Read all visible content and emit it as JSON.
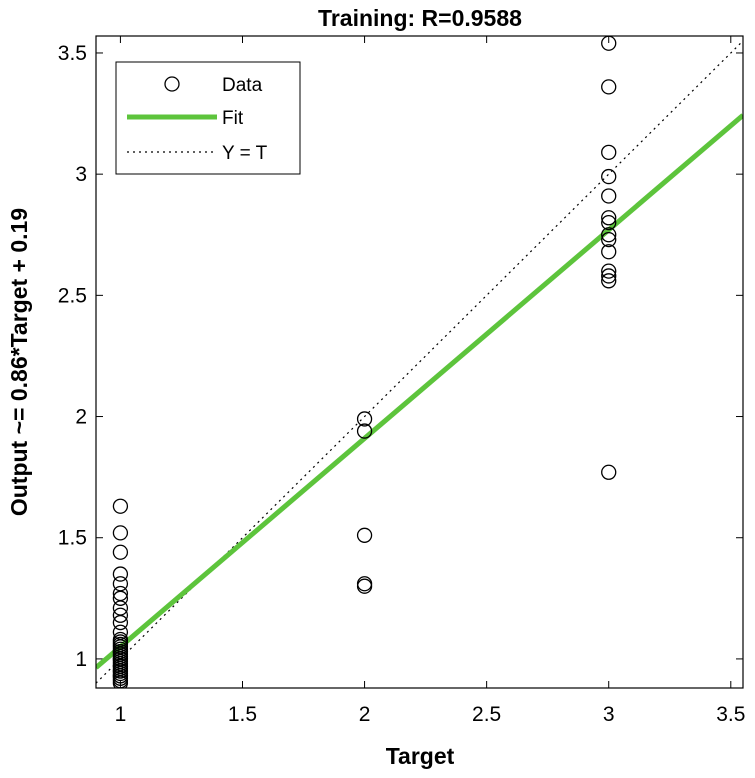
{
  "chart_data": {
    "type": "scatter",
    "title": "Training: R=0.9588",
    "xlabel": "Target",
    "ylabel": "Output ~= 0.86*Target + 0.19",
    "xlim": [
      0.9,
      3.55
    ],
    "ylim": [
      0.88,
      3.57
    ],
    "xticks": [
      1,
      1.5,
      2,
      2.5,
      3,
      3.5
    ],
    "xtick_labels": [
      "1",
      "1.5",
      "2",
      "2.5",
      "3",
      "3.5"
    ],
    "yticks": [
      1,
      1.5,
      2,
      2.5,
      3,
      3.5
    ],
    "ytick_labels": [
      "1",
      "1.5",
      "2",
      "2.5",
      "3",
      "3.5"
    ],
    "grid": false,
    "legend_position": "top-left",
    "series": [
      {
        "name": "Data",
        "kind": "markers",
        "marker": "circle",
        "color": "#000000",
        "x": [
          1,
          1,
          1,
          1,
          1,
          1,
          1,
          1,
          1,
          1,
          1,
          1,
          1,
          1,
          1,
          1,
          1,
          1,
          1,
          1,
          1,
          1,
          1,
          1,
          1,
          1,
          1,
          1,
          1,
          1,
          1,
          1,
          1,
          1,
          1,
          2,
          2,
          2,
          2,
          2,
          3,
          3,
          3,
          3,
          3,
          3,
          3,
          3,
          3,
          3,
          3,
          3,
          3,
          3
        ],
        "y": [
          1.63,
          1.52,
          1.44,
          1.35,
          1.31,
          1.27,
          1.25,
          1.21,
          1.18,
          1.15,
          1.11,
          1.08,
          1.07,
          1.06,
          1.05,
          1.04,
          1.03,
          1.02,
          1.01,
          1.0,
          0.99,
          0.98,
          0.97,
          0.96,
          0.95,
          0.95,
          0.94,
          0.93,
          0.92,
          0.91,
          0.9,
          1.03,
          1.0,
          0.97,
          0.93,
          1.99,
          1.94,
          1.51,
          1.31,
          1.3,
          3.54,
          3.36,
          3.09,
          2.99,
          2.91,
          2.82,
          2.8,
          2.75,
          2.73,
          2.68,
          2.6,
          2.58,
          2.56,
          1.77
        ]
      },
      {
        "name": "Fit",
        "kind": "line",
        "color": "#5dc43c",
        "x": [
          0.9,
          3.55
        ],
        "y": [
          0.964,
          3.243
        ]
      },
      {
        "name": "Y = T",
        "kind": "dotted-line",
        "color": "#000000",
        "x": [
          0.9,
          3.55
        ],
        "y": [
          0.9,
          3.55
        ]
      }
    ]
  }
}
